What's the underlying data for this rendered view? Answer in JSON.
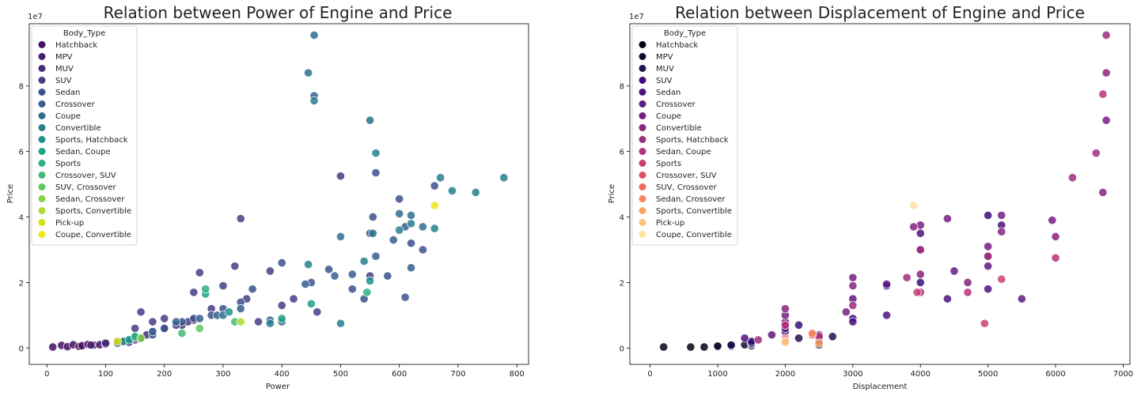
{
  "chart_data": [
    {
      "type": "scatter",
      "title": "Relation between Power of Engine and Price",
      "xlabel": "Power",
      "ylabel": "Price",
      "y_offset_text": "1e7",
      "xlim": [
        -30,
        820
      ],
      "ylim": [
        -5000000,
        99000000
      ],
      "xticks": [
        0,
        100,
        200,
        300,
        400,
        500,
        600,
        700,
        800
      ],
      "yticks": [
        0,
        2,
        4,
        6,
        8
      ],
      "yticks_scaled_value": 10000000,
      "grid": false,
      "legend": {
        "title": "Body_Type",
        "placement": "top-left",
        "entries": [
          "Hatchback",
          "MPV",
          "MUV",
          "SUV",
          "Sedan",
          "Crossover",
          "Coupe",
          "Convertible",
          "Sports, Hatchback",
          "Sedan, Coupe",
          "Sports",
          "Crossover, SUV",
          "SUV, Crossover",
          "Sedan, Crossover",
          "Sports, Convertible",
          "Pick-up",
          "Coupe, Convertible"
        ],
        "colors": [
          "#471164",
          "#481f70",
          "#472c7a",
          "#433e85",
          "#3b518b",
          "#355f8d",
          "#2d708e",
          "#277f8e",
          "#21918c",
          "#1fa187",
          "#2ab07f",
          "#3fbc73",
          "#5ec962",
          "#84d44b",
          "#addc30",
          "#d5e21a",
          "#f1e51d"
        ]
      },
      "series": [
        {
          "name": "Hatchback",
          "x": [
            10,
            25,
            35,
            45,
            55,
            60,
            70,
            80,
            90,
            100
          ],
          "y": [
            300000,
            800000,
            400000,
            1000000,
            500000,
            700000,
            1100000,
            900000,
            1000000,
            1200000
          ]
        },
        {
          "name": "MPV",
          "x": [
            75,
            100,
            120,
            130,
            140,
            150,
            160
          ],
          "y": [
            900000,
            1200000,
            1500000,
            2000000,
            1800000,
            2500000,
            3000000
          ]
        },
        {
          "name": "MUV",
          "x": [
            100,
            120,
            140,
            160,
            170,
            180,
            200,
            230,
            250
          ],
          "y": [
            1500000,
            2000000,
            2500000,
            3000000,
            4000000,
            5000000,
            6000000,
            7000000,
            8500000
          ]
        },
        {
          "name": "SUV",
          "x": [
            150,
            160,
            180,
            200,
            220,
            240,
            250,
            260,
            280,
            300,
            320,
            330,
            340,
            360,
            380,
            400,
            420,
            460,
            500,
            550
          ],
          "y": [
            6000000,
            11000000,
            8000000,
            9000000,
            7000000,
            8000000,
            17000000,
            23000000,
            12000000,
            19000000,
            25000000,
            39500000,
            15000000,
            8000000,
            23500000,
            13000000,
            15000000,
            11000000,
            52500000,
            22000000
          ]
        },
        {
          "name": "Sedan",
          "x": [
            120,
            150,
            180,
            200,
            230,
            250,
            280,
            300,
            330,
            350,
            400,
            450,
            480,
            520,
            540,
            555,
            560,
            580,
            600,
            610,
            620,
            640,
            660
          ],
          "y": [
            1500000,
            3000000,
            4000000,
            6000000,
            8000000,
            9000000,
            10000000,
            12000000,
            14000000,
            18000000,
            26000000,
            20000000,
            24000000,
            18000000,
            15000000,
            40000000,
            53500000,
            22000000,
            45500000,
            15500000,
            32000000,
            30000000,
            49500000
          ]
        },
        {
          "name": "Crossover",
          "x": [
            180,
            220,
            260,
            290,
            330,
            380,
            440,
            455,
            490,
            520,
            550,
            560,
            590,
            610,
            620
          ],
          "y": [
            5000000,
            8000000,
            9000000,
            10000000,
            12000000,
            8500000,
            19500000,
            77000000,
            22000000,
            22500000,
            35000000,
            28000000,
            33000000,
            37000000,
            24500000
          ]
        },
        {
          "name": "Coupe",
          "x": [
            300,
            400,
            445,
            455,
            500,
            550,
            555,
            600,
            620,
            640
          ],
          "y": [
            10000000,
            8000000,
            84000000,
            95500000,
            34000000,
            69500000,
            35000000,
            41000000,
            40500000,
            37000000
          ]
        },
        {
          "name": "Convertible",
          "x": [
            380,
            445,
            455,
            500,
            540,
            560,
            600,
            620,
            660,
            670,
            690,
            730,
            778
          ],
          "y": [
            7500000,
            25500000,
            75500000,
            7500000,
            26500000,
            59500000,
            36000000,
            38000000,
            36500000,
            52000000,
            48000000,
            47500000,
            52000000
          ]
        },
        {
          "name": "Sports, Hatchback",
          "x": [
            130,
            150,
            310,
            550
          ],
          "y": [
            2000000,
            3500000,
            11000000,
            20500000
          ]
        },
        {
          "name": "Sedan, Coupe",
          "x": [
            140,
            270,
            400,
            450
          ],
          "y": [
            2500000,
            16500000,
            9000000,
            13500000
          ]
        },
        {
          "name": "Sports",
          "x": [
            150,
            270,
            545
          ],
          "y": [
            3500000,
            18000000,
            17000000
          ]
        },
        {
          "name": "Crossover, SUV",
          "x": [
            230,
            320
          ],
          "y": [
            4500000,
            8000000
          ]
        },
        {
          "name": "SUV, Crossover",
          "x": [
            260
          ],
          "y": [
            6000000
          ]
        },
        {
          "name": "Sedan, Crossover",
          "x": [
            160
          ],
          "y": [
            3000000
          ]
        },
        {
          "name": "Sports, Convertible",
          "x": [
            330
          ],
          "y": [
            8000000
          ]
        },
        {
          "name": "Pick-up",
          "x": [
            120
          ],
          "y": [
            2000000
          ]
        },
        {
          "name": "Coupe, Convertible",
          "x": [
            660
          ],
          "y": [
            43500000
          ]
        }
      ]
    },
    {
      "type": "scatter",
      "title": "Relation between Displacement of Engine and Price",
      "xlabel": "Displacement",
      "ylabel": "Price",
      "y_offset_text": "1e7",
      "xlim": [
        -300,
        7100
      ],
      "ylim": [
        -5000000,
        99000000
      ],
      "xticks": [
        0,
        1000,
        2000,
        3000,
        4000,
        5000,
        6000,
        7000
      ],
      "yticks": [
        0,
        2,
        4,
        6,
        8
      ],
      "yticks_scaled_value": 10000000,
      "grid": false,
      "legend": {
        "title": "Body_Type",
        "placement": "top-left",
        "entries": [
          "Hatchback",
          "MPV",
          "MUV",
          "SUV",
          "Sedan",
          "Crossover",
          "Coupe",
          "Convertible",
          "Sports, Hatchback",
          "Sedan, Coupe",
          "Sports",
          "Crossover, SUV",
          "SUV, Crossover",
          "Sedan, Crossover",
          "Sports, Convertible",
          "Pick-up",
          "Coupe, Convertible"
        ],
        "colors": [
          "#050417",
          "#110d31",
          "#231151",
          "#38117a",
          "#4e137f",
          "#611a82",
          "#741f81",
          "#87267f",
          "#9c2e7f",
          "#b3337a",
          "#cb4074",
          "#de5069",
          "#ee6a5f",
          "#f48659",
          "#f9a566",
          "#fcc37f",
          "#fde3a3"
        ]
      },
      "series": [
        {
          "name": "Hatchback",
          "x": [
            200,
            600,
            800,
            1000,
            1200,
            1500,
            2500
          ],
          "y": [
            300000,
            300000,
            300000,
            400000,
            500000,
            700000,
            1000000
          ]
        },
        {
          "name": "MPV",
          "x": [
            1000,
            1200,
            1400,
            1500,
            2000,
            2500
          ],
          "y": [
            600000,
            800000,
            1000000,
            1200000,
            2000000,
            2500000
          ]
        },
        {
          "name": "MUV",
          "x": [
            1200,
            1500,
            2000,
            2200,
            2500,
            2700
          ],
          "y": [
            900000,
            1500000,
            2500000,
            3000000,
            2000000,
            3500000
          ]
        },
        {
          "name": "SUV",
          "x": [
            1500,
            2000,
            2200,
            3000,
            3500,
            4000,
            5000
          ],
          "y": [
            2000000,
            5000000,
            7000000,
            9000000,
            19000000,
            20000000,
            40500000
          ]
        },
        {
          "name": "Sedan",
          "x": [
            1400,
            2000,
            2500,
            3000,
            3500,
            4000,
            4400,
            5000,
            5200
          ],
          "y": [
            3000000,
            6000000,
            4000000,
            8000000,
            10000000,
            35000000,
            15000000,
            18000000,
            37500000
          ]
        },
        {
          "name": "Crossover",
          "x": [
            1800,
            2000,
            3000,
            3500,
            4000,
            4500,
            5000,
            5500
          ],
          "y": [
            4000000,
            8000000,
            15000000,
            19500000,
            30000000,
            23500000,
            25000000,
            15000000
          ]
        },
        {
          "name": "Coupe",
          "x": [
            2000,
            2900,
            3000,
            4000,
            4400,
            5000,
            5200,
            5950,
            6750
          ],
          "y": [
            10000000,
            11000000,
            21500000,
            37500000,
            39500000,
            31000000,
            40500000,
            39000000,
            69500000
          ]
        },
        {
          "name": "Convertible",
          "x": [
            2000,
            3000,
            3900,
            4000,
            4700,
            5000,
            5200,
            6000,
            6700,
            6750
          ],
          "y": [
            12000000,
            19000000,
            37000000,
            22500000,
            20000000,
            28000000,
            35500000,
            34000000,
            47500000,
            84000000
          ]
        },
        {
          "name": "Sports, Hatchback",
          "x": [
            1600,
            2000,
            3000,
            3800,
            4000,
            5000,
            6250,
            6600,
            6750
          ],
          "y": [
            2500000,
            7000000,
            13000000,
            21500000,
            30000000,
            28000000,
            52000000,
            59500000,
            95500000
          ]
        },
        {
          "name": "Sedan, Coupe",
          "x": [
            2000,
            2500,
            4000,
            4700,
            6000,
            6700
          ],
          "y": [
            7000000,
            3500000,
            17000000,
            17000000,
            27500000,
            77500000
          ]
        },
        {
          "name": "Sports",
          "x": [
            3950,
            4950,
            5200
          ],
          "y": [
            17000000,
            7500000,
            21000000
          ]
        },
        {
          "name": "Crossover, SUV",
          "x": [
            2000,
            2400
          ],
          "y": [
            3000000,
            4000000
          ]
        },
        {
          "name": "SUV, Crossover",
          "x": [
            2000
          ],
          "y": [
            2500000
          ]
        },
        {
          "name": "Sedan, Crossover",
          "x": [
            2400
          ],
          "y": [
            4500000
          ]
        },
        {
          "name": "Sports, Convertible",
          "x": [
            2000,
            2500
          ],
          "y": [
            2000000,
            1500000
          ]
        },
        {
          "name": "Pick-up",
          "x": [
            2000
          ],
          "y": [
            1800000
          ]
        },
        {
          "name": "Coupe, Convertible",
          "x": [
            3900
          ],
          "y": [
            43500000
          ]
        }
      ]
    }
  ]
}
